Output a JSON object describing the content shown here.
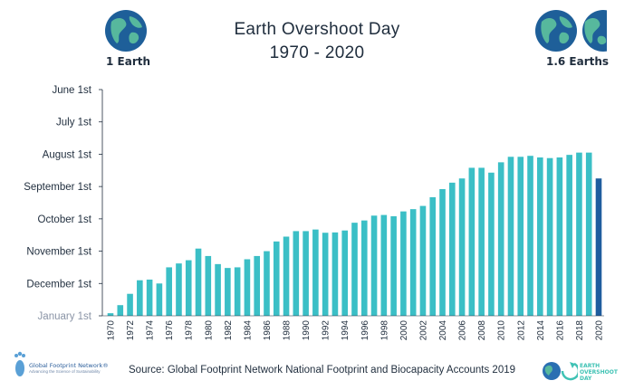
{
  "header": {
    "title_line1": "Earth Overshoot Day",
    "title_line2": "1970 - 2020",
    "left_globe_label": "1 Earth",
    "right_globe_label": "1.6 Earths"
  },
  "footer": {
    "source": "Source: Global Footprint Network National Footprint and Biocapacity Accounts 2019",
    "left_logo_name": "Global Footprint Network®",
    "left_logo_tagline": "Advancing the Science of Sustainability",
    "right_logo_lines": [
      "EARTH",
      "OVERSHOOT",
      "DAY"
    ]
  },
  "icons": {
    "left_globe": "earth-globe-icon",
    "right_globes": "earth-globe-icon",
    "left_logo": "footprint-logo-icon",
    "right_logo": "overshoot-globe-logo-icon"
  },
  "colors": {
    "bar": "#3bbfc6",
    "bar_highlight": "#1f5d9e",
    "ocean": "#1e5f99",
    "land": "#57b89d"
  },
  "chart_data": {
    "type": "bar",
    "title": "Earth Overshoot Day",
    "subtitle": "1970 - 2020",
    "y_ticks": [
      "June 1st",
      "July 1st",
      "August 1st",
      "September 1st",
      "October 1st",
      "November 1st",
      "December 1st",
      "January 1st"
    ],
    "y_axis_note": "months from January 1st (0) to June 1st (7)",
    "ylim": [
      0,
      7
    ],
    "x_tick_labels": [
      "1970",
      "1972",
      "1974",
      "1976",
      "1978",
      "1980",
      "1982",
      "1984",
      "1986",
      "1988",
      "1990",
      "1992",
      "1994",
      "1996",
      "1998",
      "2000",
      "2002",
      "2004",
      "2006",
      "2008",
      "2010",
      "2012",
      "2014",
      "2016",
      "2018",
      "2020"
    ],
    "categories": [
      "1970",
      "1971",
      "1972",
      "1973",
      "1974",
      "1975",
      "1976",
      "1977",
      "1978",
      "1979",
      "1980",
      "1981",
      "1982",
      "1983",
      "1984",
      "1985",
      "1986",
      "1987",
      "1988",
      "1989",
      "1990",
      "1991",
      "1992",
      "1993",
      "1994",
      "1995",
      "1996",
      "1997",
      "1998",
      "1999",
      "2000",
      "2001",
      "2002",
      "2003",
      "2004",
      "2005",
      "2006",
      "2007",
      "2008",
      "2009",
      "2010",
      "2011",
      "2012",
      "2013",
      "2014",
      "2015",
      "2016",
      "2017",
      "2018",
      "2019",
      "2020"
    ],
    "values": [
      0.08,
      0.33,
      0.68,
      1.1,
      1.12,
      1.0,
      1.5,
      1.62,
      1.72,
      2.08,
      1.85,
      1.6,
      1.48,
      1.5,
      1.75,
      1.85,
      2.0,
      2.3,
      2.45,
      2.62,
      2.62,
      2.67,
      2.57,
      2.58,
      2.64,
      2.88,
      2.95,
      3.1,
      3.12,
      3.08,
      3.23,
      3.3,
      3.4,
      3.67,
      3.92,
      4.12,
      4.25,
      4.58,
      4.58,
      4.43,
      4.75,
      4.92,
      4.92,
      4.95,
      4.9,
      4.88,
      4.9,
      4.98,
      5.05,
      5.05,
      4.25
    ],
    "highlight": "2020",
    "grid": false,
    "legend": "none"
  }
}
